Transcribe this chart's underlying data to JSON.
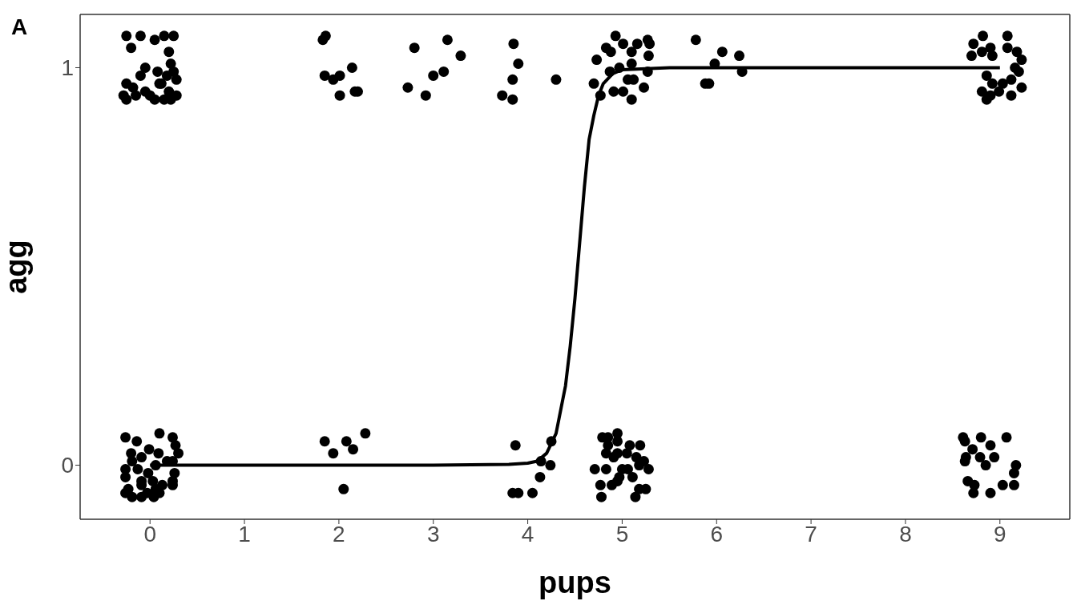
{
  "chart_data": {
    "type": "scatter",
    "xlabel": "pups",
    "ylabel": "agg",
    "annotations": [
      "A"
    ],
    "xlim": [
      -0.74,
      9.74
    ],
    "ylim": [
      -0.136,
      1.134
    ],
    "xticks": [
      0,
      1,
      2,
      3,
      4,
      5,
      6,
      7,
      8,
      9
    ],
    "yticks": [
      0,
      1
    ],
    "series": [
      {
        "marker": "circle",
        "color": "#000000",
        "x": [
          -0.25,
          -0.1,
          0.05,
          0.15,
          0.25,
          0.2,
          -0.2,
          0.22,
          0.18,
          0.25,
          -0.1,
          -0.05,
          0.08,
          -0.25,
          -0.18,
          -0.05,
          0.1,
          0.2,
          0.28,
          -0.28,
          -0.15,
          0,
          0.15,
          0.28,
          -0.25,
          0.05,
          0.22,
          0.12,
          1.86,
          1.83,
          1.85,
          1.94,
          2.01,
          2.14,
          2.01,
          2.17,
          2.2,
          2.8,
          3.15,
          3.29,
          3.11,
          3,
          2.73,
          2.92,
          3.85,
          3.9,
          3.84,
          3.73,
          3.84,
          4.3,
          4.93,
          4.83,
          5.01,
          5.16,
          5.27,
          5.29,
          5.1,
          4.88,
          4.73,
          5.28,
          4.97,
          5.1,
          4.87,
          5.27,
          5.06,
          4.7,
          4.91,
          5.01,
          5.23,
          5.1,
          4.77,
          5.12,
          5.78,
          6.06,
          5.98,
          6.24,
          6.27,
          5.92,
          5.88,
          8.82,
          9.08,
          8.72,
          8.9,
          9.08,
          8.7,
          8.81,
          8.92,
          9.18,
          9.23,
          9.16,
          9.2,
          8.86,
          9.12,
          8.92,
          9.03,
          9.23,
          8.81,
          8.9,
          9.12,
          8.99,
          8.86,
          -0.26,
          0.1,
          0.24,
          -0.14,
          -0.01,
          0.27,
          -0.2,
          0.09,
          0.3,
          -0.09,
          0.18,
          -0.19,
          0.06,
          0.24,
          -0.13,
          -0.26,
          0.26,
          -0.26,
          -0.02,
          -0.09,
          0.03,
          0.24,
          -0.09,
          0.13,
          0.24,
          -0.23,
          0.06,
          -0.26,
          -0.19,
          -0.09,
          0.04,
          0.1,
          -0.03,
          1.85,
          2.08,
          2.28,
          2.15,
          1.94,
          2.05,
          3.87,
          4.25,
          4.14,
          4.24,
          4.13,
          3.84,
          3.9,
          4.05,
          4.79,
          4.95,
          4.85,
          4.95,
          4.85,
          5.08,
          5.19,
          4.83,
          4.95,
          5.05,
          4.91,
          5.15,
          5.23,
          4.71,
          4.83,
          5,
          5.06,
          5.18,
          5.28,
          4.97,
          5.11,
          4.95,
          4.77,
          4.89,
          5.18,
          5.25,
          4.78,
          5.14,
          8.61,
          8.8,
          9.07,
          8.63,
          8.71,
          8.9,
          8.64,
          8.79,
          8.94,
          8.63,
          8.85,
          9.17,
          9.15,
          8.66,
          8.73,
          9.03,
          9.15,
          8.72,
          8.9
        ],
        "values": [
          1.08,
          1.08,
          1.07,
          1.08,
          1.08,
          1.04,
          1.05,
          1.01,
          0.98,
          0.99,
          0.98,
          1,
          0.99,
          0.96,
          0.95,
          0.94,
          0.96,
          0.94,
          0.97,
          0.93,
          0.93,
          0.93,
          0.92,
          0.93,
          0.92,
          0.92,
          0.92,
          0.96,
          1.08,
          1.07,
          0.98,
          0.97,
          0.98,
          1,
          0.93,
          0.94,
          0.94,
          1.05,
          1.07,
          1.03,
          0.99,
          0.98,
          0.95,
          0.93,
          1.06,
          1.01,
          0.97,
          0.93,
          0.92,
          0.97,
          1.08,
          1.05,
          1.06,
          1.06,
          1.07,
          1.06,
          1.04,
          1.04,
          1.02,
          1.03,
          1,
          1.01,
          0.99,
          0.99,
          0.97,
          0.96,
          0.94,
          0.94,
          0.95,
          0.92,
          0.93,
          0.97,
          1.07,
          1.04,
          1.01,
          1.03,
          0.99,
          0.96,
          0.96,
          1.08,
          1.08,
          1.06,
          1.05,
          1.05,
          1.03,
          1.04,
          1.03,
          1.04,
          1.02,
          1,
          0.99,
          0.98,
          0.97,
          0.96,
          0.96,
          0.95,
          0.94,
          0.93,
          0.93,
          0.94,
          0.92,
          0.07,
          0.08,
          0.07,
          0.06,
          0.04,
          0.05,
          0.03,
          0.03,
          0.03,
          0.02,
          0.01,
          0.01,
          0,
          0.01,
          -0.01,
          -0.01,
          -0.02,
          -0.03,
          -0.02,
          -0.04,
          -0.04,
          -0.04,
          -0.05,
          -0.05,
          -0.05,
          -0.06,
          -0.06,
          -0.07,
          -0.08,
          -0.08,
          -0.08,
          -0.07,
          -0.07,
          0.06,
          0.06,
          0.08,
          0.04,
          0.03,
          -0.06,
          0.05,
          0.06,
          0.01,
          0,
          -0.03,
          -0.07,
          -0.07,
          -0.07,
          0.07,
          0.08,
          0.07,
          0.06,
          0.05,
          0.05,
          0.05,
          0.03,
          0.03,
          0.03,
          0.02,
          0.02,
          0.01,
          -0.01,
          -0.01,
          -0.01,
          -0.01,
          0,
          -0.01,
          -0.03,
          -0.03,
          -0.04,
          -0.05,
          -0.05,
          -0.06,
          -0.06,
          -0.08,
          -0.08,
          0.07,
          0.07,
          0.07,
          0.06,
          0.04,
          0.05,
          0.02,
          0.02,
          0.02,
          0.01,
          0,
          0,
          -0.02,
          -0.04,
          -0.05,
          -0.05,
          -0.05,
          -0.07,
          -0.07
        ]
      },
      {
        "type": "line",
        "color": "#000000",
        "x": [
          0,
          1,
          2,
          3,
          3.8,
          4,
          4.1,
          4.2,
          4.3,
          4.4,
          4.45,
          4.5,
          4.55,
          4.6,
          4.65,
          4.7,
          4.75,
          4.8,
          4.9,
          5,
          5.5,
          6,
          9
        ],
        "values": [
          0,
          0,
          0,
          0,
          0.002,
          0.005,
          0.01,
          0.03,
          0.08,
          0.2,
          0.3,
          0.42,
          0.56,
          0.7,
          0.82,
          0.88,
          0.93,
          0.96,
          0.985,
          0.995,
          1,
          1,
          1
        ]
      }
    ]
  }
}
